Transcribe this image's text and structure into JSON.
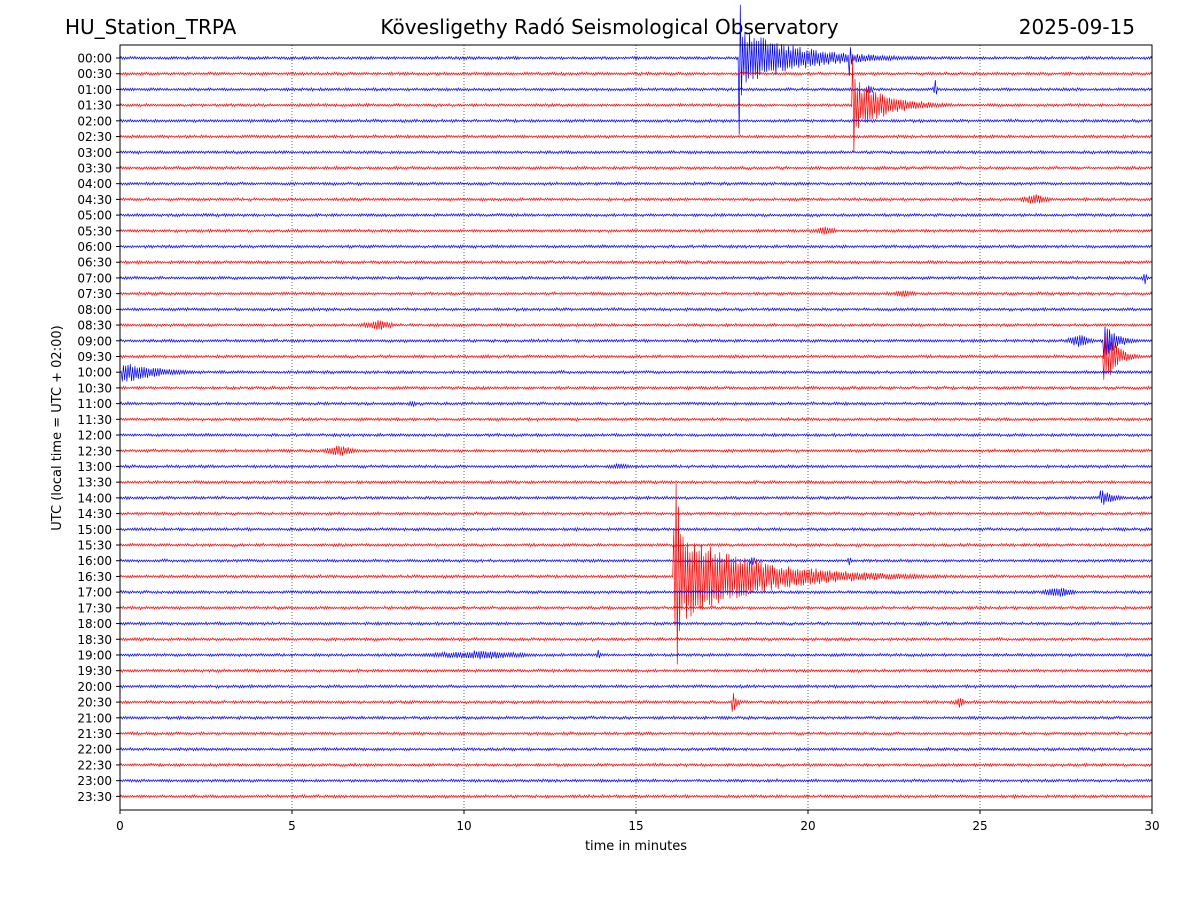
{
  "header": {
    "station": "HU_Station_TRPA",
    "observatory": "Kövesligethy Radó Seismological Observatory",
    "date": "2025-09-15"
  },
  "chart_data": {
    "type": "line",
    "subtype": "helicorder",
    "title": "Kövesligethy Radó Seismological Observatory",
    "xlabel": "time in minutes",
    "ylabel": "UTC (local time = UTC + 02:00)",
    "xlim": [
      0,
      30
    ],
    "x_ticks": [
      "0",
      "5",
      "10",
      "15",
      "20",
      "25",
      "30"
    ],
    "grid": "vertical dotted lines at x = 5, 10, 15, 20, 25",
    "trace_colors": [
      "#0000ff",
      "#ff0000"
    ],
    "rows": [
      "00:00",
      "00:30",
      "01:00",
      "01:30",
      "02:00",
      "02:30",
      "03:00",
      "03:30",
      "04:00",
      "04:30",
      "05:00",
      "05:30",
      "06:00",
      "06:30",
      "07:00",
      "07:30",
      "08:00",
      "08:30",
      "09:00",
      "09:30",
      "10:00",
      "10:30",
      "11:00",
      "11:30",
      "12:00",
      "12:30",
      "13:00",
      "13:30",
      "14:00",
      "14:30",
      "15:00",
      "15:30",
      "16:00",
      "16:30",
      "17:00",
      "17:30",
      "18:00",
      "18:30",
      "19:00",
      "19:30",
      "20:00",
      "20:30",
      "21:00",
      "21:30",
      "22:00",
      "22:30",
      "23:00",
      "23:30"
    ],
    "events": [
      {
        "row": "00:00",
        "minute": 18.0,
        "kind": "quake",
        "amplitude": 2.0,
        "duration": 7
      },
      {
        "row": "00:00",
        "minute": 18.0,
        "kind": "spike",
        "amplitude": 5.5,
        "duration": 0.15
      },
      {
        "row": "00:00",
        "minute": 21.2,
        "kind": "spike",
        "amplitude": 1.6,
        "duration": 0.1
      },
      {
        "row": "01:00",
        "minute": 23.7,
        "kind": "blip",
        "amplitude": 0.6,
        "duration": 0.2
      },
      {
        "row": "01:00",
        "minute": 21.8,
        "kind": "blip",
        "amplitude": 0.4,
        "duration": 0.3
      },
      {
        "row": "01:30",
        "minute": 21.3,
        "kind": "quake",
        "amplitude": 1.8,
        "duration": 4
      },
      {
        "row": "01:30",
        "minute": 21.3,
        "kind": "spike",
        "amplitude": 5.0,
        "duration": 0.12
      },
      {
        "row": "04:30",
        "minute": 26.6,
        "kind": "burst",
        "amplitude": 0.35,
        "duration": 1.3
      },
      {
        "row": "05:30",
        "minute": 20.5,
        "kind": "burst",
        "amplitude": 0.3,
        "duration": 1.0
      },
      {
        "row": "07:00",
        "minute": 29.8,
        "kind": "blip",
        "amplitude": 0.5,
        "duration": 0.2
      },
      {
        "row": "07:30",
        "minute": 22.8,
        "kind": "burst",
        "amplitude": 0.25,
        "duration": 1.0
      },
      {
        "row": "08:30",
        "minute": 7.5,
        "kind": "burst",
        "amplitude": 0.35,
        "duration": 1.4
      },
      {
        "row": "09:00",
        "minute": 27.9,
        "kind": "burst",
        "amplitude": 0.5,
        "duration": 1.0
      },
      {
        "row": "09:00",
        "minute": 28.6,
        "kind": "quake",
        "amplitude": 1.5,
        "duration": 1.4
      },
      {
        "row": "09:30",
        "minute": 28.6,
        "kind": "quake",
        "amplitude": 2.1,
        "duration": 1.4
      },
      {
        "row": "10:00",
        "minute": 0.05,
        "kind": "quake",
        "amplitude": 0.8,
        "duration": 4
      },
      {
        "row": "11:00",
        "minute": 8.5,
        "kind": "burst",
        "amplitude": 0.2,
        "duration": 0.5
      },
      {
        "row": "12:30",
        "minute": 6.4,
        "kind": "burst",
        "amplitude": 0.35,
        "duration": 1.5
      },
      {
        "row": "13:00",
        "minute": 14.5,
        "kind": "burst",
        "amplitude": 0.2,
        "duration": 1.2
      },
      {
        "row": "14:00",
        "minute": 28.5,
        "kind": "quake",
        "amplitude": 0.6,
        "duration": 1.5
      },
      {
        "row": "16:00",
        "minute": 18.4,
        "kind": "blip",
        "amplitude": 0.3,
        "duration": 0.3
      },
      {
        "row": "16:00",
        "minute": 21.2,
        "kind": "blip",
        "amplitude": 0.3,
        "duration": 0.2
      },
      {
        "row": "16:30",
        "minute": 16.1,
        "kind": "quake",
        "amplitude": 3.2,
        "duration": 9
      },
      {
        "row": "16:30",
        "minute": 16.15,
        "kind": "spike",
        "amplitude": 7.5,
        "duration": 0.35
      },
      {
        "row": "17:00",
        "minute": 27.3,
        "kind": "burst",
        "amplitude": 0.35,
        "duration": 1.4
      },
      {
        "row": "19:00",
        "minute": 10.4,
        "kind": "burst",
        "amplitude": 0.3,
        "duration": 4.5
      },
      {
        "row": "19:00",
        "minute": 13.9,
        "kind": "blip",
        "amplitude": 0.4,
        "duration": 0.2
      },
      {
        "row": "20:30",
        "minute": 17.8,
        "kind": "quake",
        "amplitude": 0.8,
        "duration": 0.6
      },
      {
        "row": "20:30",
        "minute": 24.4,
        "kind": "blip",
        "amplitude": 0.4,
        "duration": 0.4
      }
    ]
  }
}
